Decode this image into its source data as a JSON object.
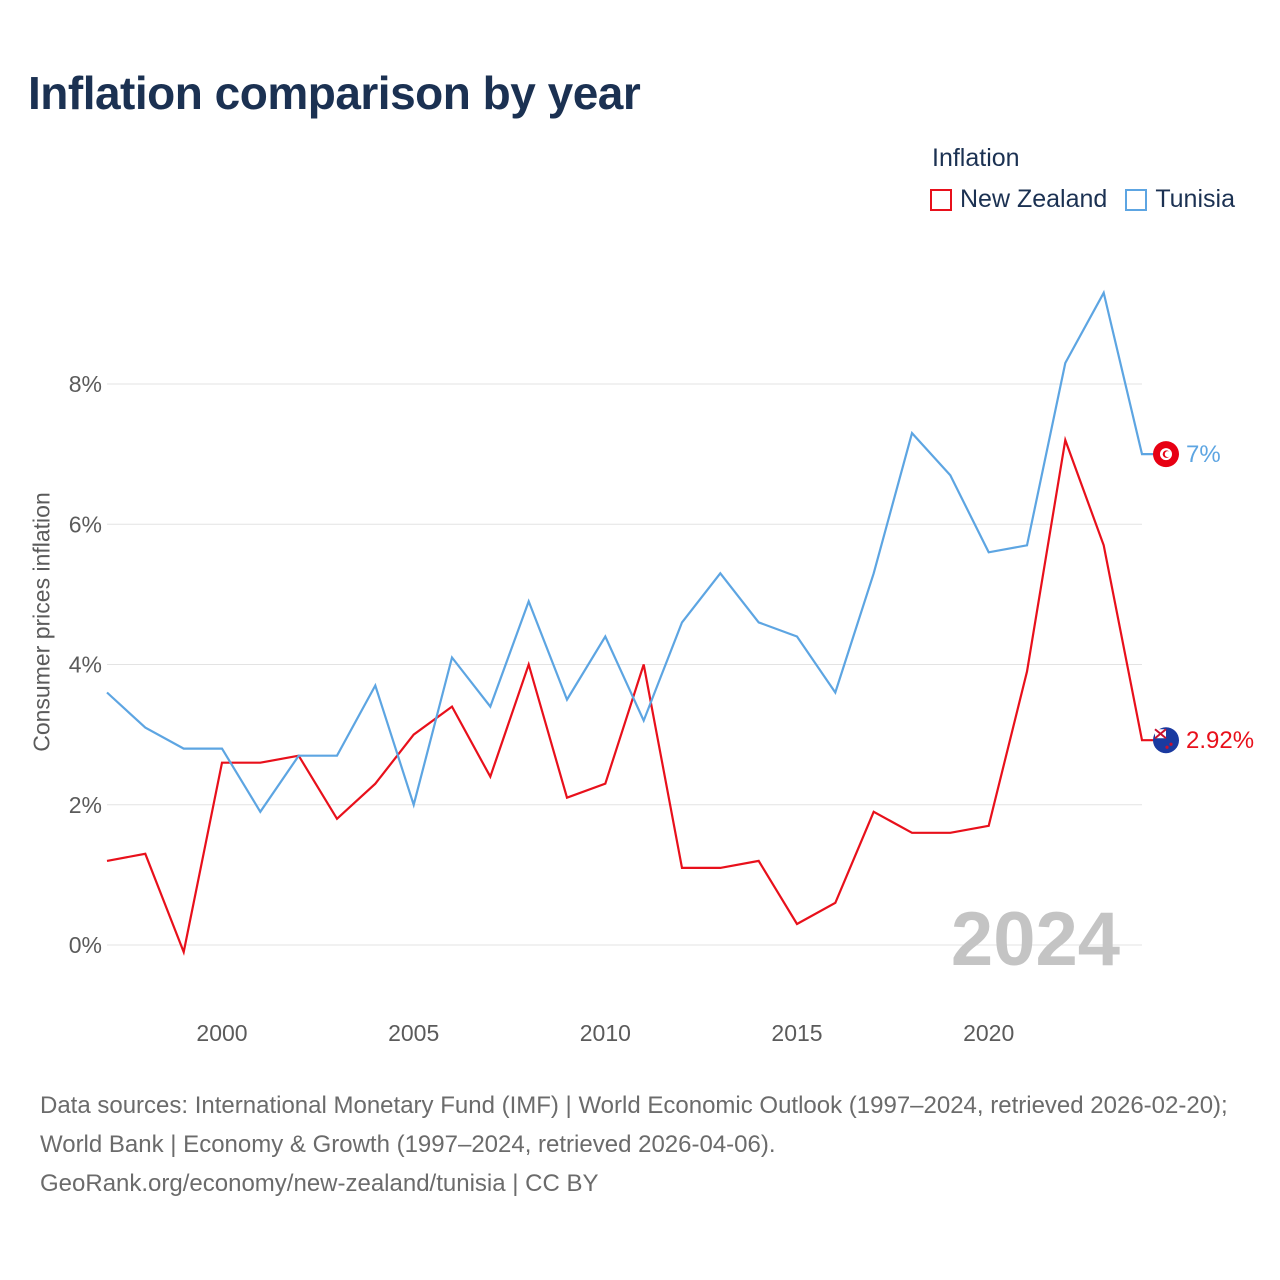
{
  "title": "Inflation comparison by year",
  "legend": {
    "title": "Inflation",
    "items": [
      {
        "label": "New Zealand",
        "color": "#e8101b"
      },
      {
        "label": "Tunisia",
        "color": "#5da5e2"
      }
    ]
  },
  "chart_data": {
    "type": "line",
    "title": "Inflation comparison by year",
    "xlabel": "",
    "ylabel": "Consumer prices inflation",
    "x": [
      1997,
      1998,
      1999,
      2000,
      2001,
      2002,
      2003,
      2004,
      2005,
      2006,
      2007,
      2008,
      2009,
      2010,
      2011,
      2012,
      2013,
      2014,
      2015,
      2016,
      2017,
      2018,
      2019,
      2020,
      2021,
      2022,
      2023,
      2024
    ],
    "xlim": [
      1997,
      2024
    ],
    "ylim": [
      -1.0,
      10.0
    ],
    "x_ticks": [
      2000,
      2005,
      2010,
      2015,
      2020
    ],
    "x_tick_labels": [
      "2000",
      "2005",
      "2010",
      "2015",
      "2020"
    ],
    "y_ticks": [
      0,
      2,
      4,
      6,
      8
    ],
    "y_tick_labels": [
      "0%",
      "2%",
      "4%",
      "6%",
      "8%"
    ],
    "grid": true,
    "current_year": "2024",
    "series": [
      {
        "name": "New Zealand",
        "color": "#e8101b",
        "end_label": "2.92%",
        "icon": "new-zealand-flag-icon",
        "values": [
          1.2,
          1.3,
          -0.1,
          2.6,
          2.6,
          2.7,
          1.8,
          2.3,
          3.0,
          3.4,
          2.4,
          4.0,
          2.1,
          2.3,
          4.0,
          1.1,
          1.1,
          1.2,
          0.3,
          0.6,
          1.9,
          1.6,
          1.6,
          1.7,
          3.9,
          7.2,
          5.7,
          2.92
        ]
      },
      {
        "name": "Tunisia",
        "color": "#5da5e2",
        "end_label": "7%",
        "icon": "tunisia-flag-icon",
        "values": [
          3.6,
          3.1,
          2.8,
          2.8,
          1.9,
          2.7,
          2.7,
          3.7,
          2.0,
          4.1,
          3.4,
          4.9,
          3.5,
          4.4,
          3.2,
          4.6,
          5.3,
          4.6,
          4.4,
          3.6,
          5.3,
          7.3,
          6.7,
          5.6,
          5.7,
          8.3,
          9.3,
          7.0
        ]
      }
    ]
  },
  "source": {
    "line1": "Data sources: International Monetary Fund (IMF) | World Economic Outlook (1997–2024, retrieved 2026-02-20); World Bank | Economy & Growth (1997–2024, retrieved 2026-04-06).",
    "line2": "GeoRank.org/economy/new-zealand/tunisia | CC BY"
  }
}
